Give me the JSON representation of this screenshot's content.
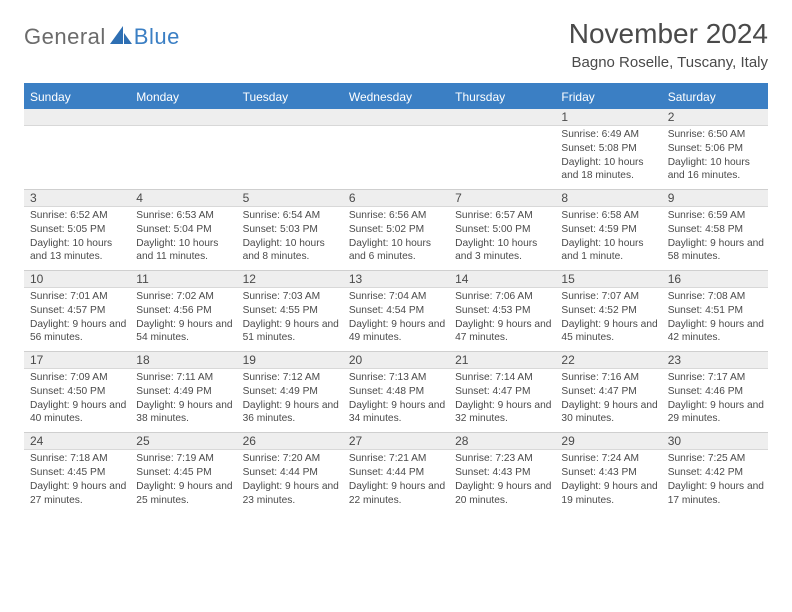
{
  "logo": {
    "general": "General",
    "blue": "Blue"
  },
  "title": "November 2024",
  "location": "Bagno Roselle, Tuscany, Italy",
  "colors": {
    "brand_blue": "#3b7fc4",
    "band": "#eeeeee",
    "text": "#4a4a4a"
  },
  "dayNames": [
    "Sunday",
    "Monday",
    "Tuesday",
    "Wednesday",
    "Thursday",
    "Friday",
    "Saturday"
  ],
  "weeks": [
    [
      {
        "n": "",
        "sr": "",
        "ss": "",
        "dl": ""
      },
      {
        "n": "",
        "sr": "",
        "ss": "",
        "dl": ""
      },
      {
        "n": "",
        "sr": "",
        "ss": "",
        "dl": ""
      },
      {
        "n": "",
        "sr": "",
        "ss": "",
        "dl": ""
      },
      {
        "n": "",
        "sr": "",
        "ss": "",
        "dl": ""
      },
      {
        "n": "1",
        "sr": "Sunrise: 6:49 AM",
        "ss": "Sunset: 5:08 PM",
        "dl": "Daylight: 10 hours and 18 minutes."
      },
      {
        "n": "2",
        "sr": "Sunrise: 6:50 AM",
        "ss": "Sunset: 5:06 PM",
        "dl": "Daylight: 10 hours and 16 minutes."
      }
    ],
    [
      {
        "n": "3",
        "sr": "Sunrise: 6:52 AM",
        "ss": "Sunset: 5:05 PM",
        "dl": "Daylight: 10 hours and 13 minutes."
      },
      {
        "n": "4",
        "sr": "Sunrise: 6:53 AM",
        "ss": "Sunset: 5:04 PM",
        "dl": "Daylight: 10 hours and 11 minutes."
      },
      {
        "n": "5",
        "sr": "Sunrise: 6:54 AM",
        "ss": "Sunset: 5:03 PM",
        "dl": "Daylight: 10 hours and 8 minutes."
      },
      {
        "n": "6",
        "sr": "Sunrise: 6:56 AM",
        "ss": "Sunset: 5:02 PM",
        "dl": "Daylight: 10 hours and 6 minutes."
      },
      {
        "n": "7",
        "sr": "Sunrise: 6:57 AM",
        "ss": "Sunset: 5:00 PM",
        "dl": "Daylight: 10 hours and 3 minutes."
      },
      {
        "n": "8",
        "sr": "Sunrise: 6:58 AM",
        "ss": "Sunset: 4:59 PM",
        "dl": "Daylight: 10 hours and 1 minute."
      },
      {
        "n": "9",
        "sr": "Sunrise: 6:59 AM",
        "ss": "Sunset: 4:58 PM",
        "dl": "Daylight: 9 hours and 58 minutes."
      }
    ],
    [
      {
        "n": "10",
        "sr": "Sunrise: 7:01 AM",
        "ss": "Sunset: 4:57 PM",
        "dl": "Daylight: 9 hours and 56 minutes."
      },
      {
        "n": "11",
        "sr": "Sunrise: 7:02 AM",
        "ss": "Sunset: 4:56 PM",
        "dl": "Daylight: 9 hours and 54 minutes."
      },
      {
        "n": "12",
        "sr": "Sunrise: 7:03 AM",
        "ss": "Sunset: 4:55 PM",
        "dl": "Daylight: 9 hours and 51 minutes."
      },
      {
        "n": "13",
        "sr": "Sunrise: 7:04 AM",
        "ss": "Sunset: 4:54 PM",
        "dl": "Daylight: 9 hours and 49 minutes."
      },
      {
        "n": "14",
        "sr": "Sunrise: 7:06 AM",
        "ss": "Sunset: 4:53 PM",
        "dl": "Daylight: 9 hours and 47 minutes."
      },
      {
        "n": "15",
        "sr": "Sunrise: 7:07 AM",
        "ss": "Sunset: 4:52 PM",
        "dl": "Daylight: 9 hours and 45 minutes."
      },
      {
        "n": "16",
        "sr": "Sunrise: 7:08 AM",
        "ss": "Sunset: 4:51 PM",
        "dl": "Daylight: 9 hours and 42 minutes."
      }
    ],
    [
      {
        "n": "17",
        "sr": "Sunrise: 7:09 AM",
        "ss": "Sunset: 4:50 PM",
        "dl": "Daylight: 9 hours and 40 minutes."
      },
      {
        "n": "18",
        "sr": "Sunrise: 7:11 AM",
        "ss": "Sunset: 4:49 PM",
        "dl": "Daylight: 9 hours and 38 minutes."
      },
      {
        "n": "19",
        "sr": "Sunrise: 7:12 AM",
        "ss": "Sunset: 4:49 PM",
        "dl": "Daylight: 9 hours and 36 minutes."
      },
      {
        "n": "20",
        "sr": "Sunrise: 7:13 AM",
        "ss": "Sunset: 4:48 PM",
        "dl": "Daylight: 9 hours and 34 minutes."
      },
      {
        "n": "21",
        "sr": "Sunrise: 7:14 AM",
        "ss": "Sunset: 4:47 PM",
        "dl": "Daylight: 9 hours and 32 minutes."
      },
      {
        "n": "22",
        "sr": "Sunrise: 7:16 AM",
        "ss": "Sunset: 4:47 PM",
        "dl": "Daylight: 9 hours and 30 minutes."
      },
      {
        "n": "23",
        "sr": "Sunrise: 7:17 AM",
        "ss": "Sunset: 4:46 PM",
        "dl": "Daylight: 9 hours and 29 minutes."
      }
    ],
    [
      {
        "n": "24",
        "sr": "Sunrise: 7:18 AM",
        "ss": "Sunset: 4:45 PM",
        "dl": "Daylight: 9 hours and 27 minutes."
      },
      {
        "n": "25",
        "sr": "Sunrise: 7:19 AM",
        "ss": "Sunset: 4:45 PM",
        "dl": "Daylight: 9 hours and 25 minutes."
      },
      {
        "n": "26",
        "sr": "Sunrise: 7:20 AM",
        "ss": "Sunset: 4:44 PM",
        "dl": "Daylight: 9 hours and 23 minutes."
      },
      {
        "n": "27",
        "sr": "Sunrise: 7:21 AM",
        "ss": "Sunset: 4:44 PM",
        "dl": "Daylight: 9 hours and 22 minutes."
      },
      {
        "n": "28",
        "sr": "Sunrise: 7:23 AM",
        "ss": "Sunset: 4:43 PM",
        "dl": "Daylight: 9 hours and 20 minutes."
      },
      {
        "n": "29",
        "sr": "Sunrise: 7:24 AM",
        "ss": "Sunset: 4:43 PM",
        "dl": "Daylight: 9 hours and 19 minutes."
      },
      {
        "n": "30",
        "sr": "Sunrise: 7:25 AM",
        "ss": "Sunset: 4:42 PM",
        "dl": "Daylight: 9 hours and 17 minutes."
      }
    ]
  ]
}
